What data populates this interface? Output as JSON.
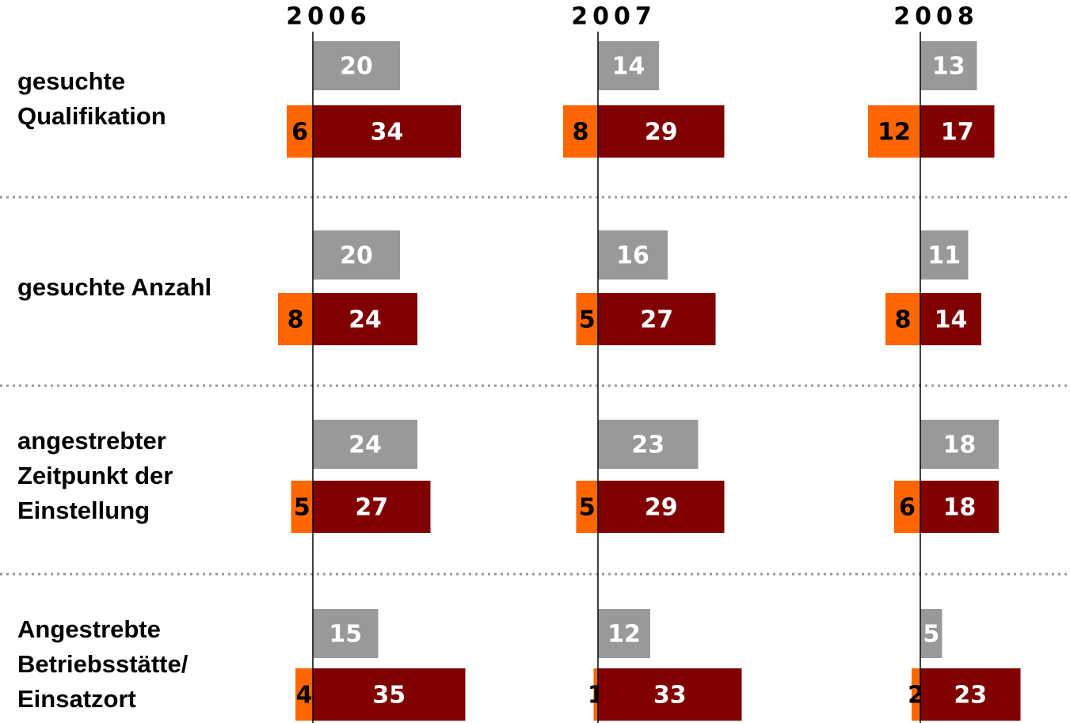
{
  "chart_data": {
    "type": "bar",
    "categories": [
      "gesuchte\nQualifikation",
      "gesuchte Anzahl",
      "angestrebter\nZeitpunkt der\nEinstellung",
      "Angestrebte\nBetriebsstätte/\nEinsatzort"
    ],
    "panels": [
      {
        "title": "2006",
        "series": [
          {
            "color": "#999999",
            "direction": "right",
            "values": [
              20,
              20,
              24,
              15
            ]
          },
          {
            "color": "#ff6600",
            "direction": "left",
            "values": [
              6,
              8,
              5,
              4
            ]
          },
          {
            "color": "#800000",
            "direction": "right",
            "values": [
              34,
              24,
              27,
              35
            ]
          }
        ]
      },
      {
        "title": "2007",
        "series": [
          {
            "color": "#999999",
            "direction": "right",
            "values": [
              14,
              16,
              23,
              12
            ]
          },
          {
            "color": "#ff6600",
            "direction": "left",
            "values": [
              8,
              5,
              5,
              1
            ]
          },
          {
            "color": "#800000",
            "direction": "right",
            "values": [
              29,
              27,
              29,
              33
            ]
          }
        ]
      },
      {
        "title": "2008",
        "series": [
          {
            "color": "#999999",
            "direction": "right",
            "values": [
              13,
              11,
              18,
              5
            ]
          },
          {
            "color": "#ff6600",
            "direction": "left",
            "values": [
              12,
              8,
              6,
              2
            ]
          },
          {
            "color": "#800000",
            "direction": "right",
            "values": [
              17,
              14,
              18,
              23
            ]
          }
        ]
      }
    ]
  }
}
